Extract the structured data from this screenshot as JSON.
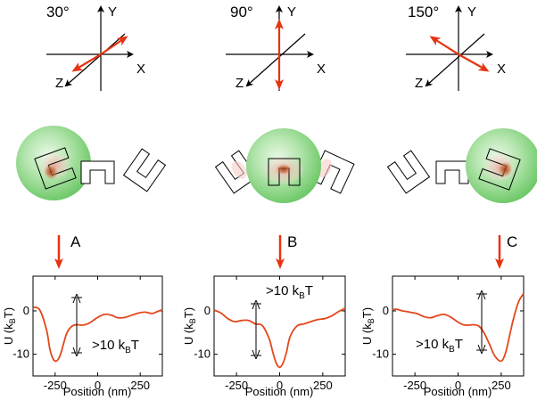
{
  "colors": {
    "accent_red": "#e63312",
    "curve": "#e4471c",
    "sphere": "#8fd68a",
    "glow": "#f2b9b3",
    "hot": "#b24a1e"
  },
  "columns": [
    {
      "angle": "30°",
      "axes": {
        "x": "X",
        "y": "Y",
        "z": "Z"
      },
      "marker": "A",
      "annotation": ">10 k",
      "annotation_sub": "B",
      "annotation_end": "T"
    },
    {
      "angle": "90°",
      "axes": {
        "x": "X",
        "y": "Y",
        "z": "Z"
      },
      "marker": "B",
      "annotation": ">10 k",
      "annotation_sub": "B",
      "annotation_end": "T"
    },
    {
      "angle": "150°",
      "axes": {
        "x": "X",
        "y": "Y",
        "z": "Z"
      },
      "marker": "C",
      "annotation": ">10 k",
      "annotation_sub": "B",
      "annotation_end": "T"
    }
  ],
  "chart_data": [
    {
      "type": "line",
      "xlabel": "Position (nm)",
      "ylabel": "U (k",
      "ylabel_sub": "B",
      "ylabel_end": "T)",
      "xlim": [
        -380,
        380
      ],
      "ylim": [
        -15,
        8
      ],
      "xticks": [
        -250,
        0,
        250
      ],
      "xtick_labels": [
        "-250",
        "0",
        "250"
      ],
      "yticks": [
        0,
        -10
      ],
      "ytick_labels": [
        "0",
        "-10"
      ],
      "x": [
        -380,
        -340,
        -300,
        -280,
        -260,
        -240,
        -220,
        -200,
        -180,
        -150,
        -120,
        -90,
        -60,
        -30,
        0,
        40,
        80,
        120,
        160,
        200,
        240,
        280,
        320,
        360,
        380
      ],
      "y": [
        0.8,
        0.2,
        -4.5,
        -9,
        -11.2,
        -11.5,
        -10.2,
        -7.5,
        -5,
        -3.5,
        -3.2,
        -3.3,
        -3,
        -2.3,
        -1.5,
        -0.8,
        -1,
        -1.6,
        -1.5,
        -1,
        -0.5,
        -0.3,
        -0.6,
        0,
        0.2
      ]
    },
    {
      "type": "line",
      "xlabel": "Position (nm)",
      "ylabel": "U (k",
      "ylabel_sub": "B",
      "ylabel_end": "T)",
      "xlim": [
        -380,
        380
      ],
      "ylim": [
        -15,
        8
      ],
      "xticks": [
        -250,
        0,
        250
      ],
      "xtick_labels": [
        "-250",
        "0",
        "250"
      ],
      "yticks": [
        0,
        -10
      ],
      "ytick_labels": [
        "0",
        "-10"
      ],
      "x": [
        -380,
        -340,
        -300,
        -260,
        -220,
        -180,
        -140,
        -100,
        -60,
        -40,
        -20,
        0,
        20,
        40,
        60,
        100,
        140,
        180,
        220,
        260,
        300,
        340,
        380
      ],
      "y": [
        0.2,
        -0.5,
        -1.8,
        -2.5,
        -2.2,
        -2.2,
        -3,
        -3.4,
        -6.5,
        -9.5,
        -12,
        -13,
        -12,
        -9.5,
        -6,
        -3.5,
        -3,
        -2.5,
        -2,
        -1.8,
        -1.2,
        -0.2,
        0.6
      ]
    },
    {
      "type": "line",
      "xlabel": "Position (nm)",
      "ylabel": "U (k",
      "ylabel_sub": "B",
      "ylabel_end": "T)",
      "xlim": [
        -380,
        380
      ],
      "ylim": [
        -15,
        8
      ],
      "xticks": [
        -250,
        0,
        250
      ],
      "xtick_labels": [
        "-250",
        "0",
        "250"
      ],
      "yticks": [
        0,
        -10
      ],
      "ytick_labels": [
        "0",
        "-10"
      ],
      "x": [
        -380,
        -360,
        -320,
        -280,
        -240,
        -200,
        -160,
        -120,
        -80,
        -40,
        0,
        30,
        60,
        90,
        120,
        150,
        180,
        210,
        240,
        260,
        280,
        300,
        320,
        350,
        380
      ],
      "y": [
        0.2,
        0.4,
        0,
        -0.3,
        -0.6,
        -1.3,
        -1.6,
        -1.1,
        -0.8,
        -1.5,
        -2.6,
        -3.2,
        -3.3,
        -3.2,
        -3.5,
        -5,
        -7.5,
        -10.2,
        -11.5,
        -11.2,
        -9,
        -5.5,
        -2,
        2,
        4
      ]
    }
  ]
}
